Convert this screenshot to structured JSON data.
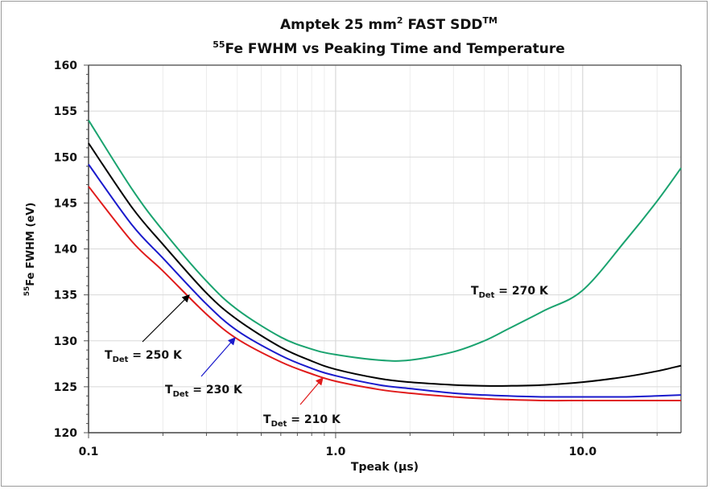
{
  "chart_data": {
    "type": "line",
    "title_line1": "Amptek 25 mm",
    "title_line1_sup": "2",
    "title_line1_rest": " FAST SDD",
    "title_line1_tm": "TM",
    "title_line2_sup": "55",
    "title_line2": "Fe FWHM vs Peaking Time and Temperature",
    "xlabel": "Tpeak (µs)",
    "ylabel_sup": "55",
    "ylabel": "Fe FWHM (eV)",
    "xscale": "log",
    "xlim": [
      0.1,
      25
    ],
    "ylim": [
      120,
      160
    ],
    "grid": true,
    "xticks": [
      "0.1",
      "1.0",
      "10.0"
    ],
    "yticks": [
      "120",
      "125",
      "130",
      "135",
      "140",
      "145",
      "150",
      "155",
      "160"
    ],
    "x": [
      0.1,
      0.15,
      0.2,
      0.3,
      0.4,
      0.6,
      0.8,
      1.0,
      1.5,
      2.0,
      3.0,
      4.0,
      5.0,
      7.0,
      10.0,
      15.0,
      20.0,
      25.0
    ],
    "series": [
      {
        "name": "T_Det = 270 K",
        "color": "#1aa36f",
        "values": [
          154,
          146.5,
          142,
          136.5,
          133.4,
          130.4,
          129.1,
          128.5,
          127.9,
          127.9,
          128.8,
          130,
          131.3,
          133.3,
          135.5,
          141,
          145.2,
          148.8
        ]
      },
      {
        "name": "T_Det = 250 K",
        "color": "#000000",
        "values": [
          151.5,
          144.5,
          140.5,
          135.2,
          132.3,
          129.3,
          127.8,
          126.9,
          125.9,
          125.5,
          125.2,
          125.1,
          125.1,
          125.2,
          125.5,
          126.1,
          126.7,
          127.3
        ]
      },
      {
        "name": "T_Det = 230 K",
        "color": "#1a1acc",
        "values": [
          149.2,
          142.6,
          139,
          134,
          131.1,
          128.4,
          127,
          126.2,
          125.2,
          124.8,
          124.3,
          124.1,
          124,
          123.9,
          123.9,
          123.9,
          124,
          124.1
        ]
      },
      {
        "name": "T_Det = 210 K",
        "color": "#e01b1b",
        "values": [
          146.8,
          140.8,
          137.6,
          132.9,
          130.2,
          127.7,
          126.4,
          125.6,
          124.7,
          124.3,
          123.9,
          123.7,
          123.6,
          123.5,
          123.5,
          123.5,
          123.5,
          123.5
        ]
      }
    ],
    "annotations": [
      {
        "label": "T",
        "sub": "Det",
        "rest": " = 270 K",
        "series": "270 K"
      },
      {
        "label": "T",
        "sub": "Det",
        "rest": " = 250 K",
        "series": "250 K"
      },
      {
        "label": "T",
        "sub": "Det",
        "rest": " = 230 K",
        "series": "230 K"
      },
      {
        "label": "T",
        "sub": "Det",
        "rest": " = 210 K",
        "series": "210 K"
      }
    ]
  }
}
